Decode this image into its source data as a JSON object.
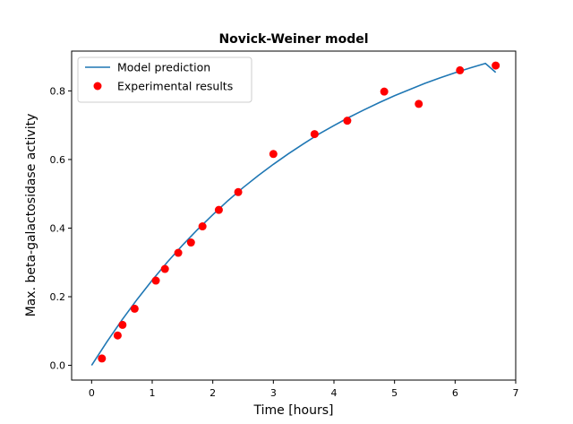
{
  "chart_data": {
    "type": "line",
    "title": "Novick-Weiner model",
    "xlabel": "Time [hours]",
    "ylabel": "Max. beta-galactosidase activity",
    "xlim": [
      -0.33,
      7.0
    ],
    "ylim": [
      -0.043,
      0.916
    ],
    "xticks": [
      0,
      1,
      2,
      3,
      4,
      5,
      6,
      7
    ],
    "xtick_labels": [
      "0",
      "1",
      "2",
      "3",
      "4",
      "5",
      "6",
      "7"
    ],
    "yticks": [
      0.0,
      0.2,
      0.4,
      0.6,
      0.8
    ],
    "ytick_labels": [
      "0.0",
      "0.2",
      "0.4",
      "0.6",
      "0.8"
    ],
    "grid": false,
    "legend_position": "top-left",
    "series": [
      {
        "name": "Model prediction",
        "kind": "line",
        "color": "#1f77b4",
        "x": [
          0,
          0.25,
          0.5,
          0.75,
          1.0,
          1.25,
          1.5,
          1.75,
          2.0,
          2.25,
          2.5,
          2.75,
          3.0,
          3.25,
          3.5,
          3.75,
          4.0,
          4.25,
          4.5,
          4.75,
          5.0,
          5.25,
          5.5,
          5.75,
          6.0,
          6.25,
          6.5,
          6.67
        ],
        "y": [
          0.0,
          0.068,
          0.132,
          0.192,
          0.248,
          0.301,
          0.35,
          0.396,
          0.439,
          0.48,
          0.518,
          0.553,
          0.586,
          0.617,
          0.646,
          0.674,
          0.699,
          0.723,
          0.745,
          0.766,
          0.786,
          0.804,
          0.822,
          0.838,
          0.853,
          0.867,
          0.88,
          0.854
        ]
      },
      {
        "name": "Experimental results",
        "kind": "scatter",
        "color": "#ff0000",
        "x": [
          0.17,
          0.43,
          0.51,
          0.71,
          1.06,
          1.21,
          1.43,
          1.64,
          1.83,
          2.1,
          2.42,
          3.0,
          3.68,
          4.22,
          4.83,
          5.4,
          6.08,
          6.67
        ],
        "y": [
          0.02,
          0.087,
          0.118,
          0.165,
          0.247,
          0.281,
          0.328,
          0.358,
          0.405,
          0.453,
          0.505,
          0.616,
          0.674,
          0.713,
          0.798,
          0.762,
          0.86,
          0.874
        ]
      }
    ]
  }
}
